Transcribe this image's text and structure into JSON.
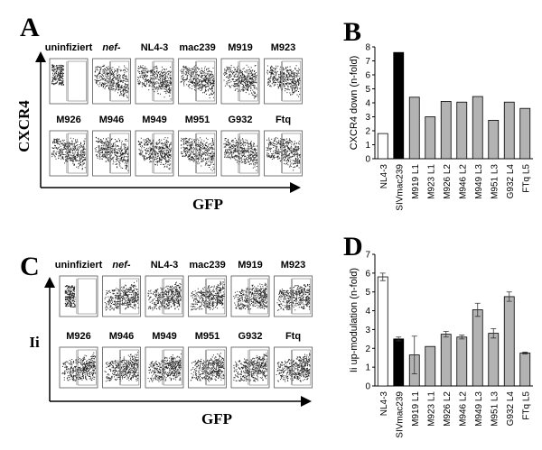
{
  "panel_a": {
    "letter": "A",
    "y_label": "CXCR4",
    "x_label": "GFP",
    "samples": [
      "uninfiziert",
      "nef-",
      "NL4-3",
      "mac239",
      "M919",
      "M923",
      "M926",
      "M946",
      "M949",
      "M951",
      "G932",
      "Ftq"
    ]
  },
  "panel_c": {
    "letter": "C",
    "y_label": "Ii",
    "x_label": "GFP",
    "samples": [
      "uninfiziert",
      "nef-",
      "NL4-3",
      "mac239",
      "M919",
      "M923",
      "M926",
      "M946",
      "M949",
      "M951",
      "G932",
      "Ftq"
    ]
  },
  "chart_data": [
    {
      "type": "bar",
      "letter": "B",
      "y_label": "CXCR4 down (n-fold)",
      "categories": [
        "NL4-3",
        "SIVmac239",
        "M919 L1",
        "M923 L1",
        "M926 L2",
        "M946 L2",
        "M949 L3",
        "M951 L3",
        "G932 L4",
        "FTq L5"
      ],
      "values": [
        1.8,
        7.6,
        4.4,
        3.0,
        4.1,
        4.05,
        4.45,
        2.75,
        4.05,
        3.6
      ],
      "colors": [
        "#ffffff",
        "#000000",
        "#b3b3b3",
        "#b3b3b3",
        "#b3b3b3",
        "#b3b3b3",
        "#b3b3b3",
        "#b3b3b3",
        "#b3b3b3",
        "#b3b3b3"
      ],
      "ylim": [
        0,
        8
      ],
      "yticks": [
        0,
        1,
        2,
        3,
        4,
        5,
        6,
        7,
        8
      ]
    },
    {
      "type": "bar",
      "letter": "D",
      "y_label": "Ii up-modulation (n-fold)",
      "categories": [
        "NL4-3",
        "SIVmac239",
        "M919 L1",
        "M923 L1",
        "M926 L2",
        "M946 L2",
        "M949 L3",
        "M951 L3",
        "G932 L4",
        "FTq L5"
      ],
      "values": [
        5.8,
        2.5,
        1.65,
        2.1,
        2.75,
        2.6,
        4.05,
        2.8,
        4.75,
        1.75
      ],
      "errors": [
        0.2,
        0.1,
        1.0,
        null,
        0.15,
        0.1,
        0.35,
        0.25,
        0.25,
        0.05
      ],
      "colors": [
        "#ffffff",
        "#000000",
        "#b3b3b3",
        "#b3b3b3",
        "#b3b3b3",
        "#b3b3b3",
        "#b3b3b3",
        "#b3b3b3",
        "#b3b3b3",
        "#b3b3b3"
      ],
      "ylim": [
        0,
        7
      ],
      "yticks": [
        0,
        1,
        2,
        3,
        4,
        5,
        6,
        7
      ]
    }
  ]
}
